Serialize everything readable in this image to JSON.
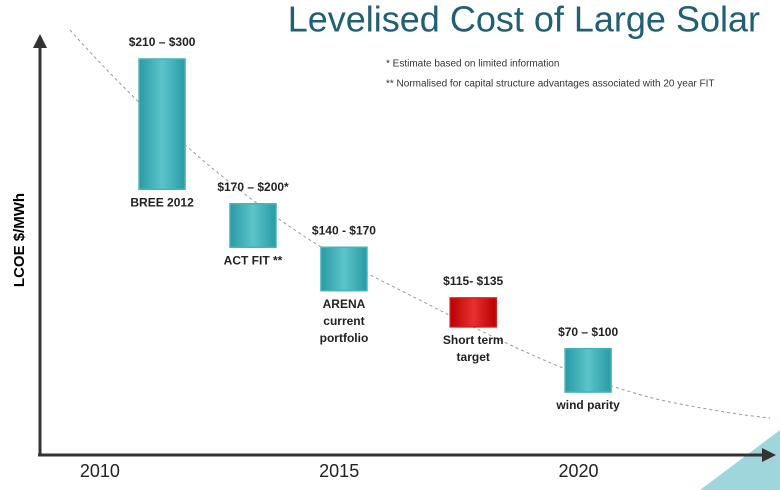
{
  "chart_data": {
    "type": "range-bar",
    "title": "Levelised Cost of Large Solar",
    "notes": [
      "*  Estimate based on limited information",
      "** Normalised  for capital structure advantages associated with  20 year FIT"
    ],
    "y_label": "LCOE $/MWh",
    "categories": [
      [
        "BREE 2012"
      ],
      [
        "ACT FIT **"
      ],
      [
        "ARENA",
        "current",
        "portfolio"
      ],
      [
        "Short term",
        "target"
      ],
      [
        "wind parity"
      ]
    ],
    "x": [
      2011.3,
      2013.2,
      2015.1,
      2017.8,
      2020.2
    ],
    "low": [
      210,
      170,
      140,
      115,
      70
    ],
    "high": [
      300,
      200,
      170,
      135,
      100
    ],
    "value_labels": [
      "$210 – $300",
      "$170 – $200*",
      "$140 - $170",
      "$115- $135",
      "$70 – $100"
    ],
    "colors": [
      "#45b3bb",
      "#45b3bb",
      "#45b3bb",
      "#d11a1a",
      "#45b3bb"
    ],
    "xlim": [
      2008.75,
      2024
    ],
    "xticks": [
      2010,
      2015,
      2020
    ],
    "ylim": [
      30,
      320
    ]
  }
}
